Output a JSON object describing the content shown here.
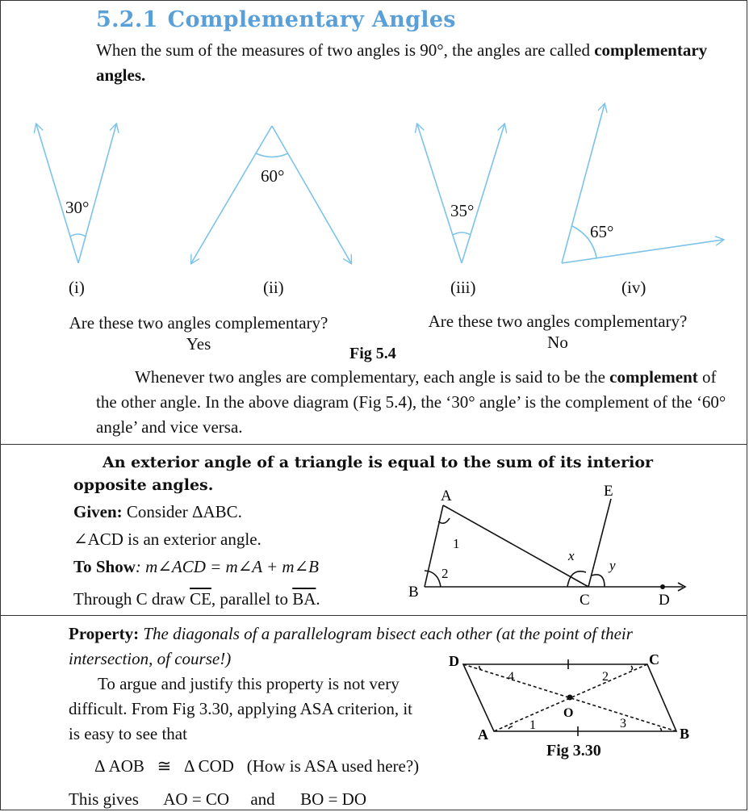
{
  "section1": {
    "number": "5.2.1",
    "title": "Complementary Angles",
    "definition_part1": "When the sum of the measures of two angles is 90°, the angles are called ",
    "definition_bold": "complementary angles.",
    "angles": [
      {
        "label": "30°",
        "roman": "(i)"
      },
      {
        "label": "60°",
        "roman": "(ii)"
      },
      {
        "label": "35°",
        "roman": "(iii)"
      },
      {
        "label": "65°",
        "roman": "(iv)"
      }
    ],
    "question_left": "Are these two angles complementary?",
    "answer_left": "Yes",
    "question_right": "Are these two angles complementary?",
    "answer_right": "No",
    "fig_caption": "Fig 5.4",
    "para2_part1": "Whenever two angles are complementary, each angle is said to be the ",
    "para2_bold": "complement",
    "para2_part2": "of the other angle. In the above diagram (Fig 5.4), the ‘30° angle’ is the complement of the ‘60° angle’ and vice versa."
  },
  "section2": {
    "theorem": "An exterior angle of a triangle is equal to the sum of its interior opposite angles.",
    "given_label": "Given:",
    "given_text": "Consider ΔABC.",
    "exterior_line": "∠ACD is an exterior angle.",
    "to_show_label": "To Show",
    "to_show_expr": ": m∠ACD = m∠A + m∠B",
    "through_text": "Through C draw ",
    "ce": "CE",
    "parallel_text": ", parallel to ",
    "ba": "BA",
    "period": ".",
    "diagram": {
      "A": "A",
      "B": "B",
      "C": "C",
      "D": "D",
      "E": "E",
      "angle1": "1",
      "angle2": "2",
      "x": "x",
      "y": "y"
    }
  },
  "section3": {
    "property_label": "Property:",
    "property_text": "The diagonals of a parallelogram bisect each other (at the point of their intersection, of course!)",
    "para_line1": "To argue and justify this property is not very",
    "para_line2": "difficult. From Fig 3.30, applying ASA criterion, it",
    "para_line3": "is easy to see that",
    "congruence": "Δ AOB   ≅   Δ COD   (How is ASA used here?)",
    "gives_line": "This gives      AO = CO     and      BO = DO",
    "fig_caption": "Fig 3.30",
    "diagram": {
      "A": "A",
      "B": "B",
      "C": "C",
      "D": "D",
      "O": "O",
      "a1": "1",
      "a2": "2",
      "a3": "3",
      "a4": "4"
    }
  },
  "colors": {
    "heading": "#5aa0d8",
    "angle_line": "#7cc3ea",
    "text": "#111111"
  }
}
